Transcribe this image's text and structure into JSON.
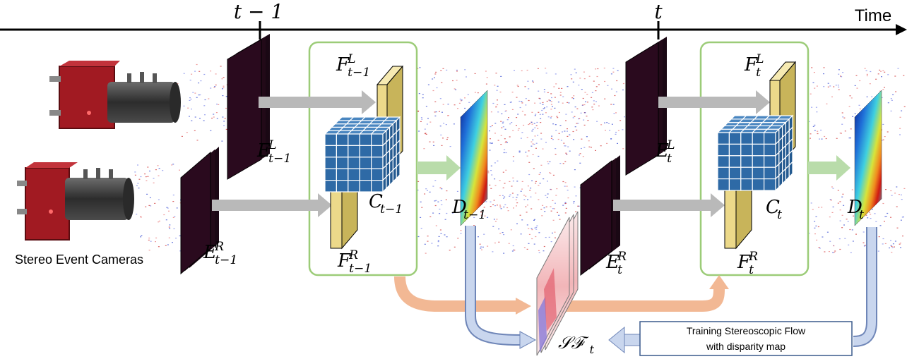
{
  "timeline": {
    "axis_label": "Time",
    "tick_prev": "t − 1",
    "tick_curr": "t"
  },
  "cameras": {
    "caption": "Stereo Event Cameras"
  },
  "step_prev": {
    "E_left": {
      "base": "E",
      "sup": "L",
      "sub": "t−1"
    },
    "E_right": {
      "base": "E",
      "sup": "R",
      "sub": "t−1"
    },
    "F_left": {
      "base": "F",
      "sup": "L",
      "sub": "t−1"
    },
    "F_right": {
      "base": "F",
      "sup": "R",
      "sub": "t−1"
    },
    "C": {
      "base": "C",
      "sub": "t−1"
    },
    "D": {
      "base": "D",
      "sub": "t−1"
    }
  },
  "step_curr": {
    "E_left": {
      "base": "E",
      "sup": "L",
      "sub": "t"
    },
    "E_right": {
      "base": "E",
      "sup": "R",
      "sub": "t"
    },
    "F_left": {
      "base": "F",
      "sup": "L",
      "sub": "t"
    },
    "F_right": {
      "base": "F",
      "sup": "R",
      "sub": "t"
    },
    "C": {
      "base": "C",
      "sub": "t"
    },
    "D": {
      "base": "D",
      "sub": "t"
    }
  },
  "scene_flow": {
    "base": "𝒮ℱ",
    "sub": "t"
  },
  "training_box": {
    "line1": "Training  Stereoscopic Flow",
    "line2": "with disparity map"
  },
  "colors": {
    "feature_fill": "#ecd98a",
    "cost_volume": "#2e6aa6",
    "module_border": "#9ccc78",
    "gray_arrow": "#b9b9b9",
    "orange_arrow": "#f2b894",
    "blue_arrow": "#c9d6ee",
    "green_arrow": "#b9dcaa",
    "camera_red": "#a11a22",
    "camera_lens": "#3e3e3e"
  }
}
